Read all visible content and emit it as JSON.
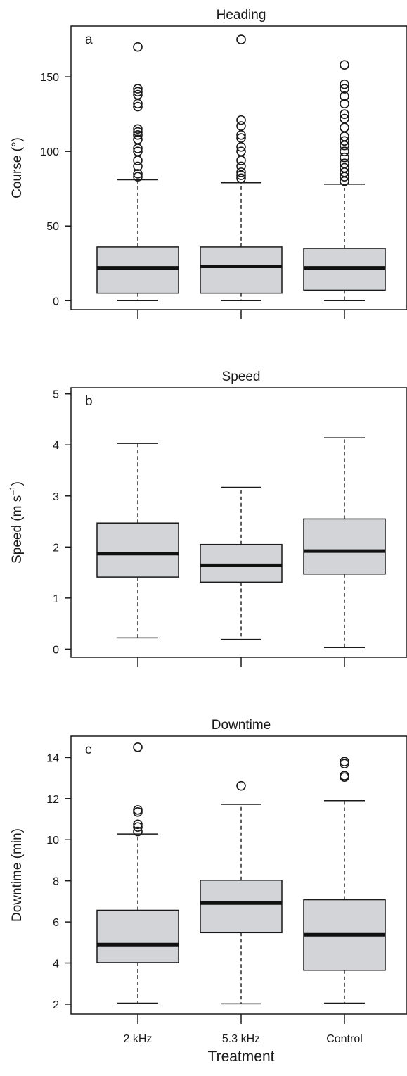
{
  "figure": {
    "xlabel": "Treatment"
  },
  "chart_data": [
    {
      "type": "box",
      "panel_letter": "a",
      "title": "Heading",
      "xlabel": "",
      "ylabel": "Course (°)",
      "categories": [
        "2 kHz",
        "5.3 kHz",
        "Control"
      ],
      "show_category_labels": false,
      "ylim": [
        -6,
        184
      ],
      "yticks": [
        0,
        50,
        100,
        150
      ],
      "grid": false,
      "box_fill": "#d3d4d8",
      "boxes": [
        {
          "category": "2 kHz",
          "whisker_low": 0,
          "q1": 5,
          "median": 22,
          "q3": 36,
          "whisker_high": 81,
          "outliers": [
            170,
            142,
            140,
            138,
            132,
            130,
            115,
            113,
            111,
            108,
            102,
            100,
            94,
            90,
            85,
            83
          ]
        },
        {
          "category": "5.3 kHz",
          "whisker_low": 0,
          "q1": 5,
          "median": 23,
          "q3": 36,
          "whisker_high": 79,
          "outliers": [
            175,
            121,
            117,
            111,
            109,
            103,
            100,
            94,
            90,
            86,
            84,
            82
          ]
        },
        {
          "category": "Control",
          "whisker_low": 0,
          "q1": 7,
          "median": 22,
          "q3": 35,
          "whisker_high": 78,
          "outliers": [
            158,
            145,
            142,
            137,
            132,
            125,
            122,
            116,
            110,
            107,
            104,
            100,
            96,
            92,
            89,
            86,
            83,
            80
          ]
        }
      ]
    },
    {
      "type": "box",
      "panel_letter": "b",
      "title": "Speed",
      "xlabel": "",
      "ylabel": "Speed (m s",
      "ylabel_superscript": "–1",
      "ylabel_suffix": ")",
      "categories": [
        "2 kHz",
        "5.3 kHz",
        "Control"
      ],
      "show_category_labels": false,
      "ylim": [
        -0.16,
        5.12
      ],
      "yticks": [
        0,
        1,
        2,
        3,
        4,
        5
      ],
      "grid": false,
      "box_fill": "#d3d4d8",
      "boxes": [
        {
          "category": "2 kHz",
          "whisker_low": 0.22,
          "q1": 1.41,
          "median": 1.87,
          "q3": 2.47,
          "whisker_high": 4.03,
          "outliers": []
        },
        {
          "category": "5.3 kHz",
          "whisker_low": 0.19,
          "q1": 1.31,
          "median": 1.64,
          "q3": 2.05,
          "whisker_high": 3.17,
          "outliers": []
        },
        {
          "category": "Control",
          "whisker_low": 0.03,
          "q1": 1.47,
          "median": 1.92,
          "q3": 2.55,
          "whisker_high": 4.14,
          "outliers": []
        }
      ]
    },
    {
      "type": "box",
      "panel_letter": "c",
      "title": "Downtime",
      "xlabel": "Treatment",
      "ylabel": "Downtime (min)",
      "categories": [
        "2 kHz",
        "5.3 kHz",
        "Control"
      ],
      "show_category_labels": true,
      "ylim": [
        1.52,
        15.04
      ],
      "yticks": [
        2,
        4,
        6,
        8,
        10,
        12,
        14
      ],
      "grid": false,
      "box_fill": "#d3d4d8",
      "boxes": [
        {
          "category": "2 kHz",
          "whisker_low": 2.05,
          "q1": 4.02,
          "median": 4.9,
          "q3": 6.57,
          "whisker_high": 10.28,
          "outliers": [
            14.5,
            11.45,
            11.35,
            10.75,
            10.62,
            10.4
          ]
        },
        {
          "category": "5.3 kHz",
          "whisker_low": 2.02,
          "q1": 5.48,
          "median": 6.92,
          "q3": 8.03,
          "whisker_high": 11.72,
          "outliers": [
            12.62
          ]
        },
        {
          "category": "Control",
          "whisker_low": 2.05,
          "q1": 3.65,
          "median": 5.38,
          "q3": 7.08,
          "whisker_high": 11.9,
          "outliers": [
            13.8,
            13.7,
            13.12,
            13.05
          ]
        }
      ]
    }
  ]
}
